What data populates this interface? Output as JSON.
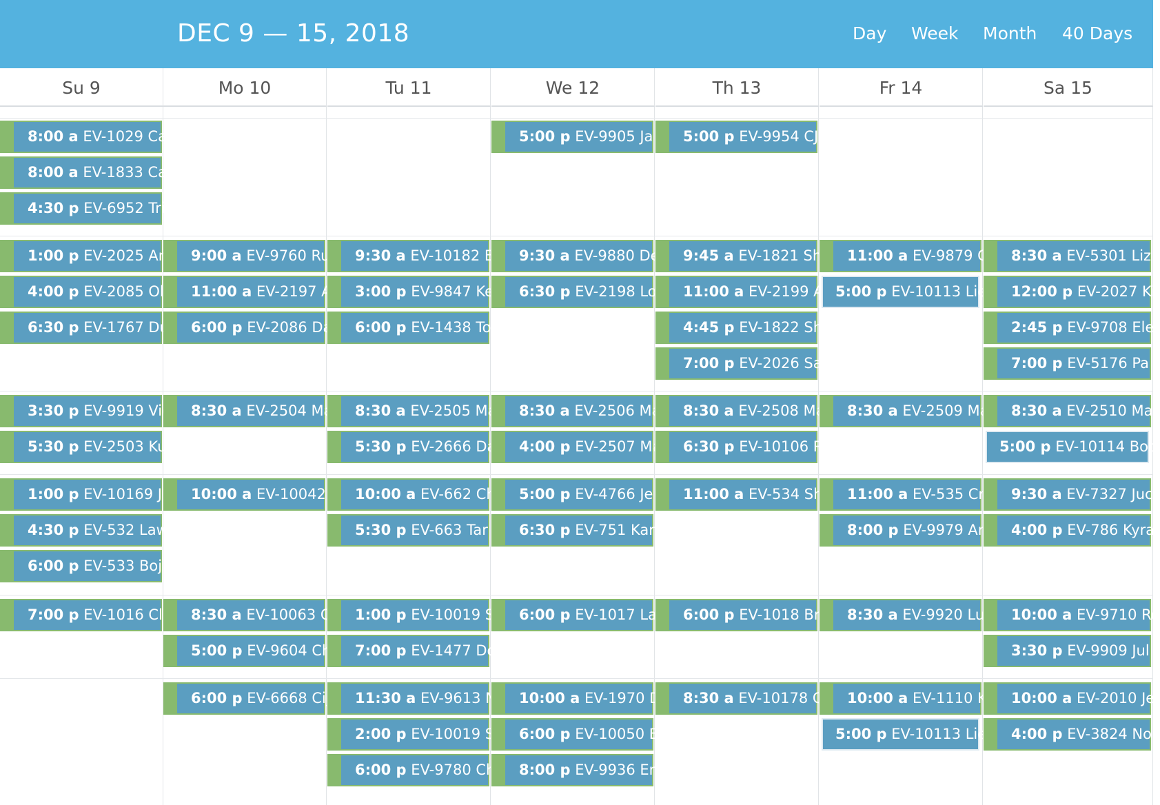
{
  "header": {
    "title": "DEC 9 — 15, 2018",
    "views": [
      "Day",
      "Week",
      "Month",
      "40 Days"
    ]
  },
  "days": [
    "Su 9",
    "Mo 10",
    "Tu 11",
    "We 12",
    "Th 13",
    "Fr 14",
    "Sa 15"
  ],
  "colors": {
    "header": "#54b2df",
    "event": "#5b9ec1",
    "accent": "#88ba6e"
  },
  "events": [
    {
      "day": 0,
      "slot": 0,
      "time": "8:00 a",
      "text": "EV-1029 Ca"
    },
    {
      "day": 0,
      "slot": 1,
      "time": "8:00 a",
      "text": "EV-1833 Ca"
    },
    {
      "day": 0,
      "slot": 2,
      "time": "4:30 p",
      "text": "EV-6952 Tri"
    },
    {
      "day": 3,
      "slot": 0,
      "time": "5:00 p",
      "text": "EV-9905 Ja"
    },
    {
      "day": 4,
      "slot": 0,
      "time": "5:00 p",
      "text": "EV-9954 CJ"
    },
    {
      "day": 0,
      "slot": 3,
      "time": "1:00 p",
      "text": "EV-2025 Ar"
    },
    {
      "day": 0,
      "slot": 4,
      "time": "4:00 p",
      "text": "EV-2085 Oli"
    },
    {
      "day": 0,
      "slot": 5,
      "time": "6:30 p",
      "text": "EV-1767 Du"
    },
    {
      "day": 1,
      "slot": 3,
      "time": "9:00 a",
      "text": "EV-9760 Ru"
    },
    {
      "day": 1,
      "slot": 4,
      "time": "11:00 a",
      "text": "EV-2197 A"
    },
    {
      "day": 1,
      "slot": 5,
      "time": "6:00 p",
      "text": "EV-2086 Da"
    },
    {
      "day": 2,
      "slot": 3,
      "time": "9:30 a",
      "text": "EV-10182 E"
    },
    {
      "day": 2,
      "slot": 4,
      "time": "3:00 p",
      "text": "EV-9847 Ke"
    },
    {
      "day": 2,
      "slot": 5,
      "time": "6:00 p",
      "text": "EV-1438 To"
    },
    {
      "day": 3,
      "slot": 3,
      "time": "9:30 a",
      "text": "EV-9880 De"
    },
    {
      "day": 3,
      "slot": 4,
      "time": "6:30 p",
      "text": "EV-2198 Lo"
    },
    {
      "day": 4,
      "slot": 3,
      "time": "9:45 a",
      "text": "EV-1821 Sh"
    },
    {
      "day": 4,
      "slot": 4,
      "time": "11:00 a",
      "text": "EV-2199 A"
    },
    {
      "day": 4,
      "slot": 5,
      "time": "4:45 p",
      "text": "EV-1822 Sh"
    },
    {
      "day": 4,
      "slot": 6,
      "time": "7:00 p",
      "text": "EV-2026 Sa"
    },
    {
      "day": 5,
      "slot": 3,
      "time": "11:00 a",
      "text": "EV-9879 C"
    },
    {
      "day": 5,
      "slot": 4,
      "time": "5:00 p",
      "text": "EV-10113 Lie",
      "nobar": true
    },
    {
      "day": 6,
      "slot": 3,
      "time": "8:30 a",
      "text": "EV-5301 Liz"
    },
    {
      "day": 6,
      "slot": 4,
      "time": "12:00 p",
      "text": "EV-2027 Ki"
    },
    {
      "day": 6,
      "slot": 5,
      "time": "2:45 p",
      "text": "EV-9708 Ele"
    },
    {
      "day": 6,
      "slot": 6,
      "time": "7:00 p",
      "text": "EV-5176 Pa"
    },
    {
      "day": 0,
      "slot": 7,
      "time": "3:30 p",
      "text": "EV-9919 Vic"
    },
    {
      "day": 0,
      "slot": 8,
      "time": "5:30 p",
      "text": "EV-2503 Ku"
    },
    {
      "day": 1,
      "slot": 7,
      "time": "8:30 a",
      "text": "EV-2504 Ma"
    },
    {
      "day": 2,
      "slot": 7,
      "time": "8:30 a",
      "text": "EV-2505 Ma"
    },
    {
      "day": 2,
      "slot": 8,
      "time": "5:30 p",
      "text": "EV-2666 Da"
    },
    {
      "day": 3,
      "slot": 7,
      "time": "8:30 a",
      "text": "EV-2506 Ma"
    },
    {
      "day": 3,
      "slot": 8,
      "time": "4:00 p",
      "text": "EV-2507 Ma"
    },
    {
      "day": 4,
      "slot": 7,
      "time": "8:30 a",
      "text": "EV-2508 Ma"
    },
    {
      "day": 4,
      "slot": 8,
      "time": "6:30 p",
      "text": "EV-10106 R"
    },
    {
      "day": 5,
      "slot": 7,
      "time": "8:30 a",
      "text": "EV-2509 Ma"
    },
    {
      "day": 6,
      "slot": 7,
      "time": "8:30 a",
      "text": "EV-2510 Ma"
    },
    {
      "day": 6,
      "slot": 8,
      "time": "5:00 p",
      "text": "EV-10114 Bob",
      "nobar": true
    },
    {
      "day": 0,
      "slot": 9,
      "time": "1:00 p",
      "text": "EV-10169 J"
    },
    {
      "day": 0,
      "slot": 10,
      "time": "4:30 p",
      "text": "EV-532 Law"
    },
    {
      "day": 0,
      "slot": 11,
      "time": "6:00 p",
      "text": "EV-533 Boj"
    },
    {
      "day": 1,
      "slot": 9,
      "time": "10:00 a",
      "text": "EV-10042"
    },
    {
      "day": 2,
      "slot": 9,
      "time": "10:00 a",
      "text": "EV-662 Ch"
    },
    {
      "day": 2,
      "slot": 10,
      "time": "5:30 p",
      "text": "EV-663 Tar"
    },
    {
      "day": 3,
      "slot": 9,
      "time": "5:00 p",
      "text": "EV-4766 Je"
    },
    {
      "day": 3,
      "slot": 10,
      "time": "6:30 p",
      "text": "EV-751 Kar"
    },
    {
      "day": 4,
      "slot": 9,
      "time": "11:00 a",
      "text": "EV-534 Sh"
    },
    {
      "day": 5,
      "slot": 9,
      "time": "11:00 a",
      "text": "EV-535 Cri"
    },
    {
      "day": 5,
      "slot": 10,
      "time": "8:00 p",
      "text": "EV-9979 An"
    },
    {
      "day": 6,
      "slot": 9,
      "time": "9:30 a",
      "text": "EV-7327 Juc"
    },
    {
      "day": 6,
      "slot": 10,
      "time": "4:00 p",
      "text": "EV-786 Kyra"
    },
    {
      "day": 0,
      "slot": 12,
      "time": "7:00 p",
      "text": "EV-1016 Clu"
    },
    {
      "day": 1,
      "slot": 12,
      "time": "8:30 a",
      "text": "EV-10063 C"
    },
    {
      "day": 1,
      "slot": 13,
      "time": "5:00 p",
      "text": "EV-9604 Ch"
    },
    {
      "day": 2,
      "slot": 12,
      "time": "1:00 p",
      "text": "EV-10019 S"
    },
    {
      "day": 2,
      "slot": 13,
      "time": "7:00 p",
      "text": "EV-1477 Do"
    },
    {
      "day": 3,
      "slot": 12,
      "time": "6:00 p",
      "text": "EV-1017 La"
    },
    {
      "day": 4,
      "slot": 12,
      "time": "6:00 p",
      "text": "EV-1018 Br"
    },
    {
      "day": 5,
      "slot": 12,
      "time": "8:30 a",
      "text": "EV-9920 Lu"
    },
    {
      "day": 6,
      "slot": 12,
      "time": "10:00 a",
      "text": "EV-9710 Ro"
    },
    {
      "day": 6,
      "slot": 13,
      "time": "3:30 p",
      "text": "EV-9909 Jul"
    },
    {
      "day": 1,
      "slot": 14,
      "time": "6:00 p",
      "text": "EV-6668 Cij"
    },
    {
      "day": 2,
      "slot": 14,
      "time": "11:30 a",
      "text": "EV-9613 N"
    },
    {
      "day": 2,
      "slot": 15,
      "time": "2:00 p",
      "text": "EV-10019 S"
    },
    {
      "day": 2,
      "slot": 16,
      "time": "6:00 p",
      "text": "EV-9780 Ch"
    },
    {
      "day": 3,
      "slot": 14,
      "time": "10:00 a",
      "text": "EV-1970 D"
    },
    {
      "day": 3,
      "slot": 15,
      "time": "6:00 p",
      "text": "EV-10050 B"
    },
    {
      "day": 3,
      "slot": 16,
      "time": "8:00 p",
      "text": "EV-9936 En"
    },
    {
      "day": 4,
      "slot": 14,
      "time": "8:30 a",
      "text": "EV-10178 C"
    },
    {
      "day": 5,
      "slot": 14,
      "time": "10:00 a",
      "text": "EV-1110 K"
    },
    {
      "day": 5,
      "slot": 15,
      "time": "5:00 p",
      "text": "EV-10113 Lie",
      "nobar": true
    },
    {
      "day": 6,
      "slot": 14,
      "time": "10:00 a",
      "text": "EV-2010 Je"
    },
    {
      "day": 6,
      "slot": 15,
      "time": "4:00 p",
      "text": "EV-3824 No"
    }
  ]
}
